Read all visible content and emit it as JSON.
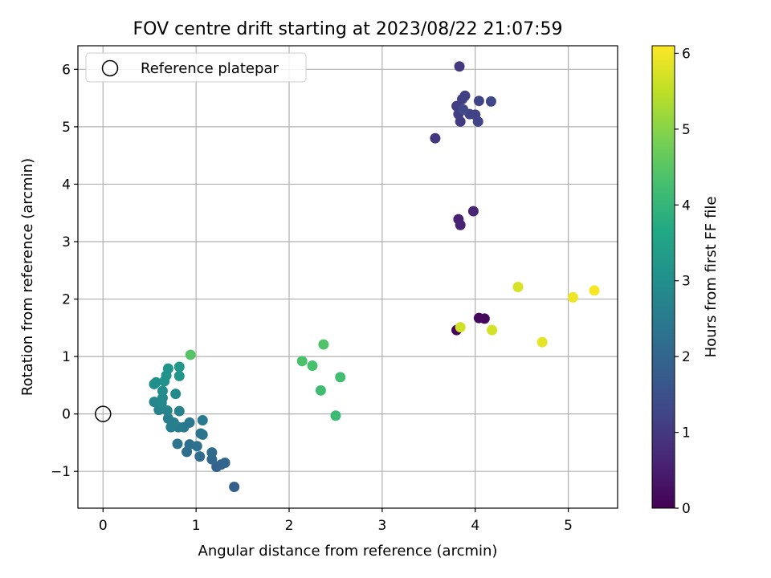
{
  "chart_data": {
    "type": "scatter",
    "title": "FOV centre drift starting at 2023/08/22 21:07:59",
    "xlabel": "Angular distance from reference (arcmin)",
    "ylabel": "Rotation from reference (arcmin)",
    "xlim": [
      -0.27,
      5.53
    ],
    "ylim": [
      -1.64,
      6.41
    ],
    "xticks": [
      0,
      1,
      2,
      3,
      4,
      5
    ],
    "yticks": [
      -1,
      0,
      1,
      2,
      3,
      4,
      5,
      6
    ],
    "grid": true,
    "legend": {
      "position": "top-left",
      "entries": [
        "Reference platepar"
      ]
    },
    "reference_point": {
      "x": 0,
      "y": 0,
      "marker": "open-circle",
      "label": "Reference platepar"
    },
    "colorbar": {
      "label": "Hours from first FF file",
      "colormap": "viridis",
      "range": [
        0,
        6.1
      ],
      "ticks": [
        0,
        1,
        2,
        3,
        4,
        5,
        6
      ]
    },
    "points": [
      {
        "x": 3.8,
        "y": 1.46,
        "c": 0.05
      },
      {
        "x": 4.04,
        "y": 1.67,
        "c": 0.1
      },
      {
        "x": 4.1,
        "y": 1.66,
        "c": 0.15
      },
      {
        "x": 3.82,
        "y": 3.39,
        "c": 0.55
      },
      {
        "x": 3.84,
        "y": 3.29,
        "c": 0.6
      },
      {
        "x": 3.98,
        "y": 3.53,
        "c": 0.65
      },
      {
        "x": 3.57,
        "y": 4.8,
        "c": 0.95
      },
      {
        "x": 3.83,
        "y": 6.05,
        "c": 1.0
      },
      {
        "x": 3.84,
        "y": 5.09,
        "c": 1.05
      },
      {
        "x": 3.8,
        "y": 5.36,
        "c": 1.08
      },
      {
        "x": 3.82,
        "y": 5.22,
        "c": 1.1
      },
      {
        "x": 3.86,
        "y": 5.48,
        "c": 1.12
      },
      {
        "x": 3.89,
        "y": 5.54,
        "c": 1.15
      },
      {
        "x": 3.94,
        "y": 5.22,
        "c": 1.18
      },
      {
        "x": 4.0,
        "y": 5.21,
        "c": 1.2
      },
      {
        "x": 4.03,
        "y": 5.09,
        "c": 1.22
      },
      {
        "x": 4.04,
        "y": 5.45,
        "c": 1.25
      },
      {
        "x": 4.17,
        "y": 5.44,
        "c": 1.28
      },
      {
        "x": 3.87,
        "y": 5.3,
        "c": 1.3
      },
      {
        "x": 1.41,
        "y": -1.27,
        "c": 1.85
      },
      {
        "x": 1.22,
        "y": -0.92,
        "c": 1.9
      },
      {
        "x": 1.27,
        "y": -0.88,
        "c": 1.95
      },
      {
        "x": 1.31,
        "y": -0.85,
        "c": 2.0
      },
      {
        "x": 1.17,
        "y": -0.79,
        "c": 2.05
      },
      {
        "x": 1.17,
        "y": -0.67,
        "c": 2.1
      },
      {
        "x": 1.04,
        "y": -0.74,
        "c": 2.15
      },
      {
        "x": 0.9,
        "y": -0.66,
        "c": 2.2
      },
      {
        "x": 0.93,
        "y": -0.53,
        "c": 2.25
      },
      {
        "x": 1.01,
        "y": -0.56,
        "c": 2.28
      },
      {
        "x": 1.05,
        "y": -0.34,
        "c": 2.32
      },
      {
        "x": 1.07,
        "y": -0.36,
        "c": 2.35
      },
      {
        "x": 0.8,
        "y": -0.52,
        "c": 2.38
      },
      {
        "x": 0.87,
        "y": -0.23,
        "c": 2.42
      },
      {
        "x": 0.93,
        "y": -0.15,
        "c": 2.45
      },
      {
        "x": 1.07,
        "y": -0.11,
        "c": 2.48
      },
      {
        "x": 0.81,
        "y": -0.23,
        "c": 2.52
      },
      {
        "x": 0.73,
        "y": -0.23,
        "c": 2.55
      },
      {
        "x": 0.7,
        "y": -0.08,
        "c": 2.58
      },
      {
        "x": 0.76,
        "y": -0.15,
        "c": 2.62
      },
      {
        "x": 0.82,
        "y": 0.05,
        "c": 2.66
      },
      {
        "x": 0.6,
        "y": 0.07,
        "c": 2.7
      },
      {
        "x": 0.69,
        "y": 0.06,
        "c": 2.74
      },
      {
        "x": 0.55,
        "y": 0.21,
        "c": 2.78
      },
      {
        "x": 0.63,
        "y": 0.19,
        "c": 2.82
      },
      {
        "x": 0.64,
        "y": 0.28,
        "c": 2.86
      },
      {
        "x": 0.78,
        "y": 0.35,
        "c": 2.9
      },
      {
        "x": 0.64,
        "y": 0.4,
        "c": 2.94
      },
      {
        "x": 0.55,
        "y": 0.52,
        "c": 2.98
      },
      {
        "x": 0.57,
        "y": 0.55,
        "c": 3.02
      },
      {
        "x": 0.66,
        "y": 0.57,
        "c": 3.06
      },
      {
        "x": 0.68,
        "y": 0.67,
        "c": 3.1
      },
      {
        "x": 0.7,
        "y": 0.79,
        "c": 3.14
      },
      {
        "x": 0.82,
        "y": 0.66,
        "c": 3.18
      },
      {
        "x": 0.82,
        "y": 0.82,
        "c": 3.22
      },
      {
        "x": 2.5,
        "y": -0.03,
        "c": 4.15
      },
      {
        "x": 2.34,
        "y": 0.41,
        "c": 4.2
      },
      {
        "x": 2.55,
        "y": 0.64,
        "c": 4.25
      },
      {
        "x": 2.25,
        "y": 0.84,
        "c": 4.3
      },
      {
        "x": 2.14,
        "y": 0.92,
        "c": 4.35
      },
      {
        "x": 2.37,
        "y": 1.21,
        "c": 4.4
      },
      {
        "x": 0.94,
        "y": 1.03,
        "c": 4.45
      },
      {
        "x": 3.84,
        "y": 1.51,
        "c": 5.65
      },
      {
        "x": 4.18,
        "y": 1.46,
        "c": 5.7
      },
      {
        "x": 4.46,
        "y": 2.21,
        "c": 5.75
      },
      {
        "x": 4.72,
        "y": 1.25,
        "c": 5.85
      },
      {
        "x": 5.05,
        "y": 2.03,
        "c": 5.95
      },
      {
        "x": 5.28,
        "y": 2.15,
        "c": 6.05
      }
    ]
  }
}
